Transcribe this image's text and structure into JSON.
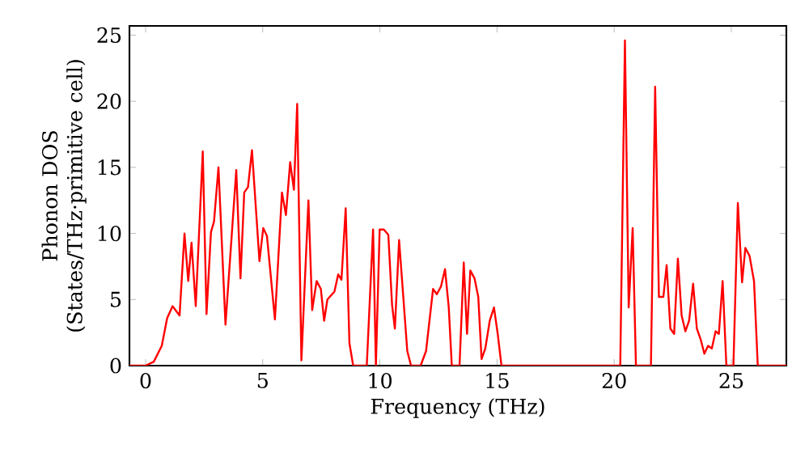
{
  "chart_data": {
    "type": "line",
    "xlabel": "Frequency (THz)",
    "ylabel": "Phonon DOS (States/THz·primitive cell)",
    "xlim": [
      -0.69,
      27.35
    ],
    "ylim": [
      0,
      25.7
    ],
    "xticks": [
      0,
      5,
      10,
      15,
      20,
      25
    ],
    "yticks": [
      0,
      5,
      10,
      15,
      20,
      25
    ],
    "grid": false,
    "marker": "none",
    "line_style": "solid",
    "series": [
      {
        "color": "#ff0000",
        "x": [
          -0.69,
          0,
          0.35,
          0.69,
          0.92,
          1.15,
          1.45,
          1.66,
          1.82,
          1.96,
          2.14,
          2.44,
          2.6,
          2.79,
          2.92,
          3.11,
          3.41,
          3.87,
          4.05,
          4.21,
          4.37,
          4.54,
          4.86,
          5.02,
          5.18,
          5.52,
          5.82,
          5.99,
          6.17,
          6.33,
          6.47,
          6.65,
          6.95,
          7.11,
          7.3,
          7.48,
          7.62,
          7.76,
          8.06,
          8.22,
          8.36,
          8.54,
          8.7,
          8.86,
          9.44,
          9.71,
          9.83,
          9.99,
          10.17,
          10.36,
          10.52,
          10.64,
          10.82,
          11.17,
          11.33,
          11.74,
          11.97,
          12.27,
          12.43,
          12.61,
          12.78,
          12.94,
          13.07,
          13.4,
          13.58,
          13.72,
          13.86,
          14.04,
          14.2,
          14.34,
          14.5,
          14.69,
          14.87,
          15.03,
          15.19,
          20.26,
          20.46,
          20.62,
          20.79,
          20.93,
          21.57,
          21.75,
          21.91,
          22.1,
          22.24,
          22.4,
          22.56,
          22.72,
          22.88,
          23.04,
          23.2,
          23.37,
          23.53,
          23.69,
          23.85,
          24.01,
          24.17,
          24.33,
          24.47,
          24.63,
          24.79,
          25.09,
          25.28,
          25.46,
          25.6,
          25.78,
          25.97,
          26.13,
          27.35
        ],
        "values": [
          0,
          0,
          0.3,
          1.5,
          3.6,
          4.5,
          3.8,
          10.0,
          6.4,
          9.3,
          4.5,
          16.2,
          3.9,
          10.1,
          10.9,
          15.0,
          3.1,
          14.8,
          6.6,
          13.1,
          13.5,
          16.3,
          7.9,
          10.4,
          9.8,
          3.5,
          13.1,
          11.4,
          15.4,
          13.3,
          19.8,
          0.4,
          12.5,
          4.2,
          6.4,
          5.8,
          3.4,
          5.0,
          5.6,
          6.9,
          6.5,
          11.9,
          1.7,
          0,
          0,
          10.3,
          0,
          10.3,
          10.3,
          9.9,
          4.6,
          2.8,
          9.5,
          1.1,
          0,
          0,
          1.1,
          5.8,
          5.4,
          6.0,
          7.3,
          4.4,
          0,
          0,
          7.8,
          2.4,
          7.2,
          6.6,
          5.2,
          0.5,
          1.3,
          3.4,
          4.4,
          2.4,
          0,
          0,
          24.6,
          4.4,
          10.4,
          0,
          0,
          21.1,
          5.2,
          5.2,
          7.6,
          2.8,
          2.4,
          8.1,
          3.8,
          2.6,
          3.4,
          6.2,
          2.8,
          2.0,
          0.9,
          1.5,
          1.3,
          2.6,
          2.4,
          6.4,
          0,
          0,
          12.3,
          6.3,
          8.9,
          8.3,
          6.4,
          0,
          0
        ]
      }
    ]
  }
}
